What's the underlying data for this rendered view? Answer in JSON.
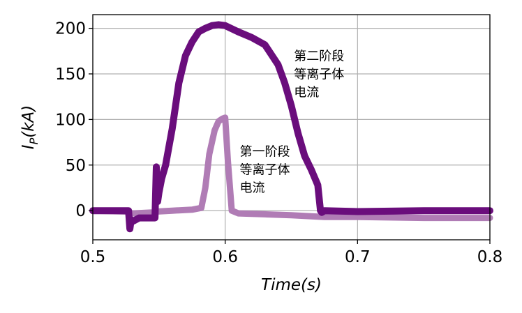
{
  "chart_data": {
    "type": "line",
    "xlabel": "Time(s)",
    "ylabel": "I_P(kA)",
    "xlim": [
      0.5,
      0.8
    ],
    "ylim": [
      -32,
      215
    ],
    "grid": true,
    "x_ticks": [
      {
        "value": 0.5,
        "label": "0.5"
      },
      {
        "value": 0.6,
        "label": "0.6"
      },
      {
        "value": 0.7,
        "label": "0.7"
      },
      {
        "value": 0.8,
        "label": "0.8"
      }
    ],
    "y_ticks": [
      {
        "value": 0,
        "label": "0"
      },
      {
        "value": 50,
        "label": "50"
      },
      {
        "value": 100,
        "label": "100"
      },
      {
        "value": 150,
        "label": "150"
      },
      {
        "value": 200,
        "label": "200"
      }
    ],
    "series": [
      {
        "color": "#b07cb5",
        "x": [
          0.5,
          0.525,
          0.53,
          0.545,
          0.548,
          0.56,
          0.575,
          0.582,
          0.585,
          0.588,
          0.592,
          0.595,
          0.598,
          0.6,
          0.602,
          0.605,
          0.61,
          0.63,
          0.65,
          0.675,
          0.7,
          0.75,
          0.8
        ],
        "y": [
          0,
          -1,
          -3,
          -2,
          -1,
          0,
          1,
          3,
          25,
          62,
          88,
          98,
          101,
          102,
          55,
          0,
          -3,
          -4,
          -5,
          -7,
          -7,
          -8,
          -8
        ]
      },
      {
        "color": "#6a0d7c",
        "x": [
          0.5,
          0.527,
          0.528,
          0.529,
          0.53,
          0.535,
          0.547,
          0.548,
          0.549,
          0.55,
          0.552,
          0.555,
          0.56,
          0.565,
          0.57,
          0.575,
          0.58,
          0.585,
          0.59,
          0.595,
          0.6,
          0.61,
          0.62,
          0.63,
          0.64,
          0.645,
          0.65,
          0.655,
          0.66,
          0.665,
          0.67,
          0.672,
          0.673,
          0.675,
          0.7,
          0.75,
          0.8
        ],
        "y": [
          0,
          0,
          -20,
          -10,
          -12,
          -8,
          -8,
          48,
          10,
          20,
          35,
          50,
          90,
          140,
          170,
          185,
          196,
          200,
          203,
          204,
          203,
          196,
          190,
          182,
          160,
          140,
          115,
          85,
          60,
          45,
          28,
          0,
          -2,
          0,
          -1,
          0,
          0
        ]
      }
    ],
    "annotations": [
      {
        "lines": [
          "第二阶段",
          "等离子体",
          "电流"
        ],
        "x": 0.652,
        "y": 165
      },
      {
        "lines": [
          "第一阶段",
          "等离子体",
          "电流"
        ],
        "x": 0.611,
        "y": 60
      }
    ]
  }
}
